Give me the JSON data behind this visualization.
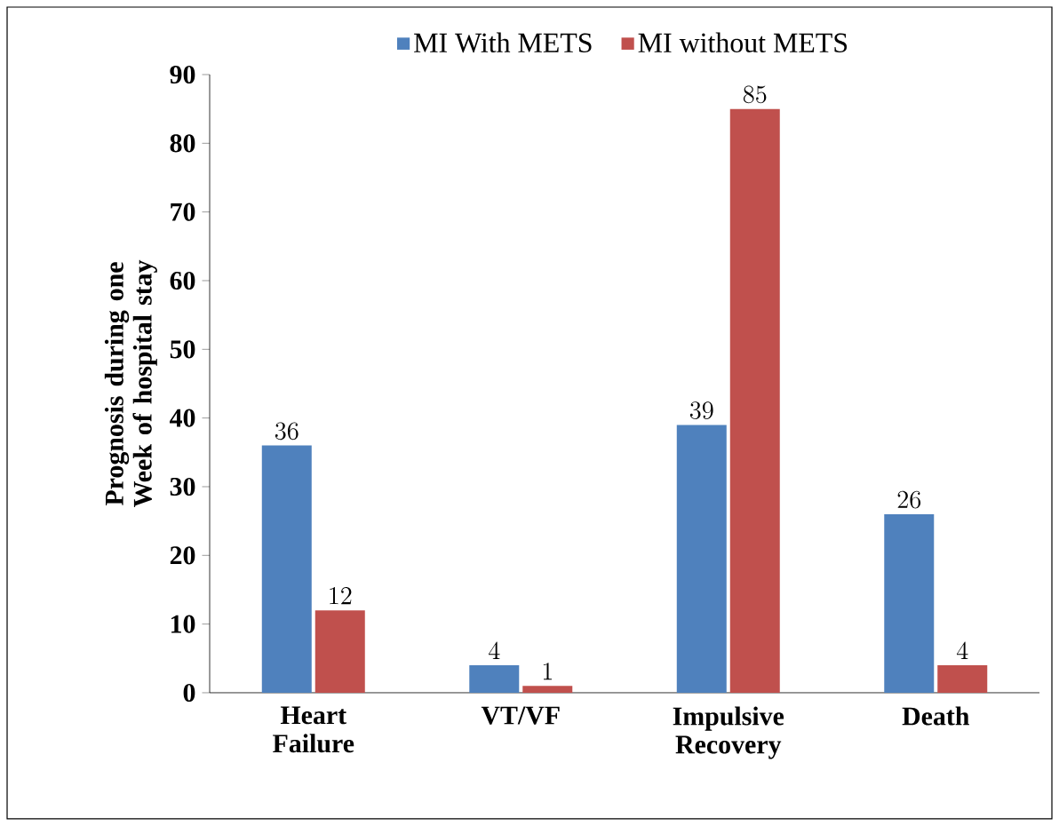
{
  "chart_data": {
    "type": "bar",
    "ylabel": "Prognosis during one Week of hospital stay",
    "categories": [
      "Heart Failure",
      "VT/VF",
      "Impulsive Recovery",
      "Death"
    ],
    "series": [
      {
        "name": "MI With METS",
        "color": "#4f81bd",
        "values": [
          36,
          4,
          39,
          26
        ]
      },
      {
        "name": "MI without METS",
        "color": "#c0504d",
        "values": [
          12,
          1,
          85,
          4
        ]
      }
    ],
    "ylim": [
      0,
      90
    ],
    "yticks": [
      0,
      10,
      20,
      30,
      40,
      50,
      60,
      70,
      80,
      90
    ],
    "data_labels": true,
    "legend": "top",
    "grid": false
  }
}
